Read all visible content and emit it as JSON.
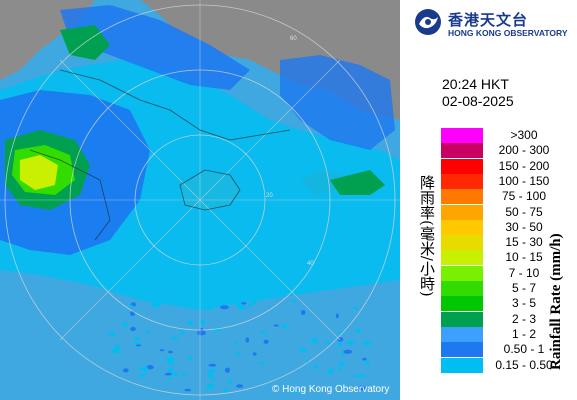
{
  "brand": {
    "name_zh": "香港天文台",
    "name_en": "HONG KONG OBSERVATORY",
    "logo_color": "#1a3b8c"
  },
  "timestamp": {
    "time": "20:24 HKT",
    "date": "02-08-2025"
  },
  "copyright": "© Hong Kong Observatory",
  "legend": {
    "title_zh": "降雨率(毫米/小時)",
    "title_en": "Rainfall Rate (mm/h)",
    "entries": [
      {
        "label": ">300",
        "color": "#ff00ff"
      },
      {
        "label": "200 - 300",
        "color": "#c80064"
      },
      {
        "label": "150 - 200",
        "color": "#ff0000"
      },
      {
        "label": "100 - 150",
        "color": "#ff2800"
      },
      {
        "label": "75 - 100",
        "color": "#ff7800"
      },
      {
        "label": "50 - 75",
        "color": "#ffa500"
      },
      {
        "label": "30 - 50",
        "color": "#ffc800"
      },
      {
        "label": "15 - 30",
        "color": "#e6dc00"
      },
      {
        "label": "10 - 15",
        "color": "#c8f000"
      },
      {
        "label": "7 - 10",
        "color": "#78f000"
      },
      {
        "label": "5 - 7",
        "color": "#32dc00"
      },
      {
        "label": "3 - 5",
        "color": "#00c800"
      },
      {
        "label": "2 - 3",
        "color": "#00a050"
      },
      {
        "label": "1 - 2",
        "color": "#3ca0ff"
      },
      {
        "label": "0.50 - 1",
        "color": "#1e78f0"
      },
      {
        "label": "0.15 - 0.50",
        "color": "#00bef0"
      }
    ]
  },
  "range_rings": [
    "20",
    "40",
    "60"
  ],
  "map_colors": {
    "sea": "#3fa8e0",
    "land": "#8c8c8c",
    "rain_light": "#00bef0",
    "rain_mid": "#1e78f0",
    "rain_green": "#00a050",
    "rain_bright": "#32dc00",
    "rain_yellow": "#c8f000"
  }
}
